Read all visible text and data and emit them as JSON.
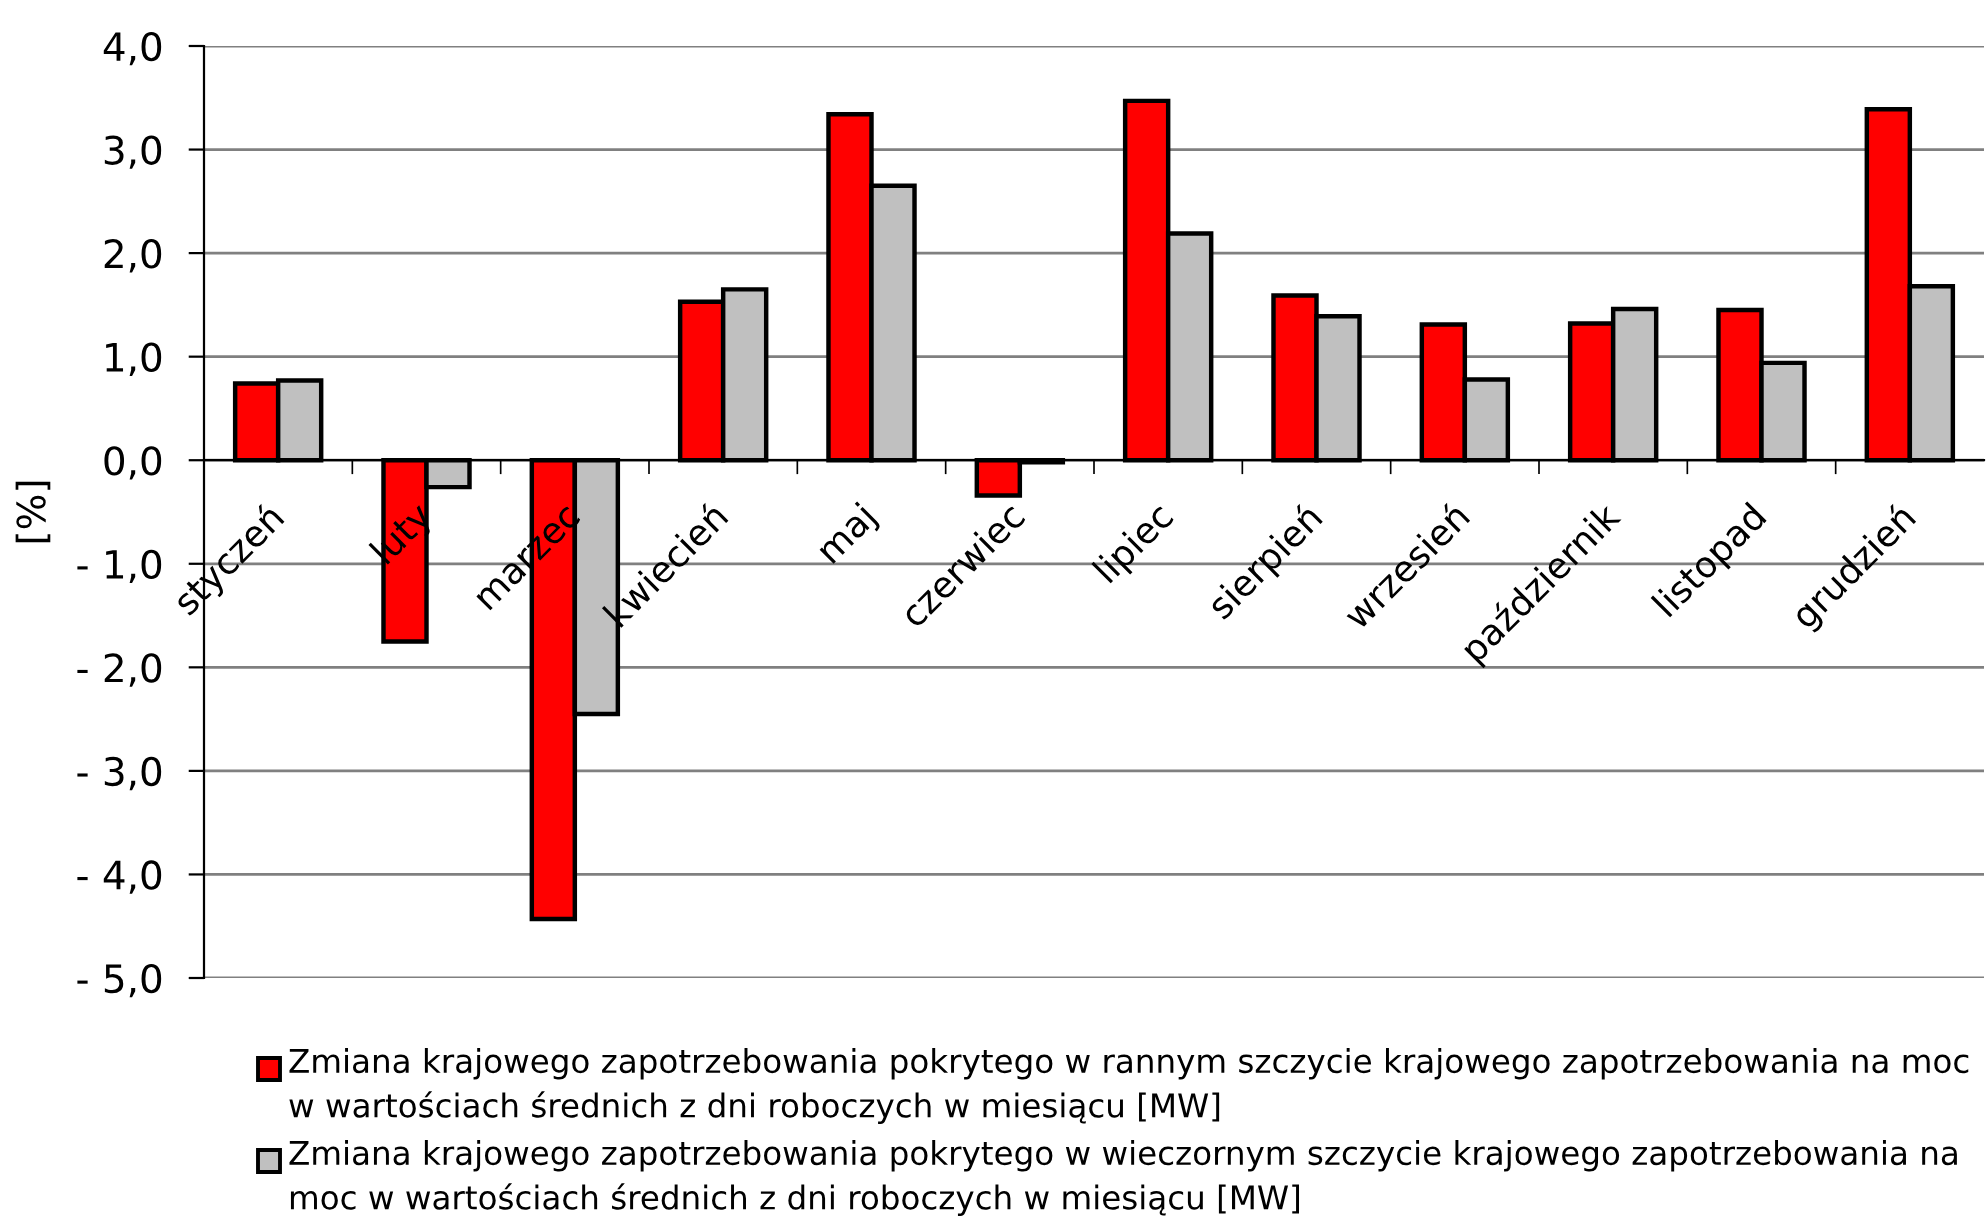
{
  "chart_data": {
    "type": "bar",
    "ylabel": "[%]",
    "categories": [
      "styczeń",
      "luty",
      "marzec",
      "kwiecień",
      "maj",
      "czerwiec",
      "lipiec",
      "sierpień",
      "wrzesień",
      "październik",
      "listopad",
      "grudzień"
    ],
    "series": [
      {
        "name": "Zmiana krajowego zapotrzebowania pokrytego w rannym szczycie krajowego zapotrzebowania na moc w wartościach średnich z dni roboczych w miesiącu [MW]",
        "color": "#ff0000",
        "values": [
          0.74,
          -1.75,
          -4.43,
          1.53,
          3.34,
          -0.34,
          3.47,
          1.59,
          1.31,
          1.32,
          1.45,
          3.39
        ]
      },
      {
        "name": "Zmiana krajowego zapotrzebowania pokrytego w wieczornym szczycie krajowego zapotrzebowania na moc w wartościach średnich z dni roboczych w miesiącu [MW]",
        "color": "#c0c0c0",
        "values": [
          0.77,
          -0.26,
          -2.45,
          1.65,
          2.65,
          -0.02,
          2.19,
          1.39,
          0.78,
          1.46,
          0.94,
          1.68
        ]
      }
    ],
    "ylim": [
      -5,
      4
    ],
    "yticks": [
      {
        "value": 4,
        "label": "4,0"
      },
      {
        "value": 3,
        "label": "3,0"
      },
      {
        "value": 2,
        "label": "2,0"
      },
      {
        "value": 1,
        "label": "1,0"
      },
      {
        "value": 0,
        "label": "0,0"
      },
      {
        "value": -1,
        "label": "- 1,0"
      },
      {
        "value": -2,
        "label": "- 2,0"
      },
      {
        "value": -3,
        "label": "- 3,0"
      },
      {
        "value": -4,
        "label": "- 4,0"
      },
      {
        "value": -5,
        "label": "- 5,0"
      }
    ],
    "grid": "y",
    "legend": "bottom"
  }
}
